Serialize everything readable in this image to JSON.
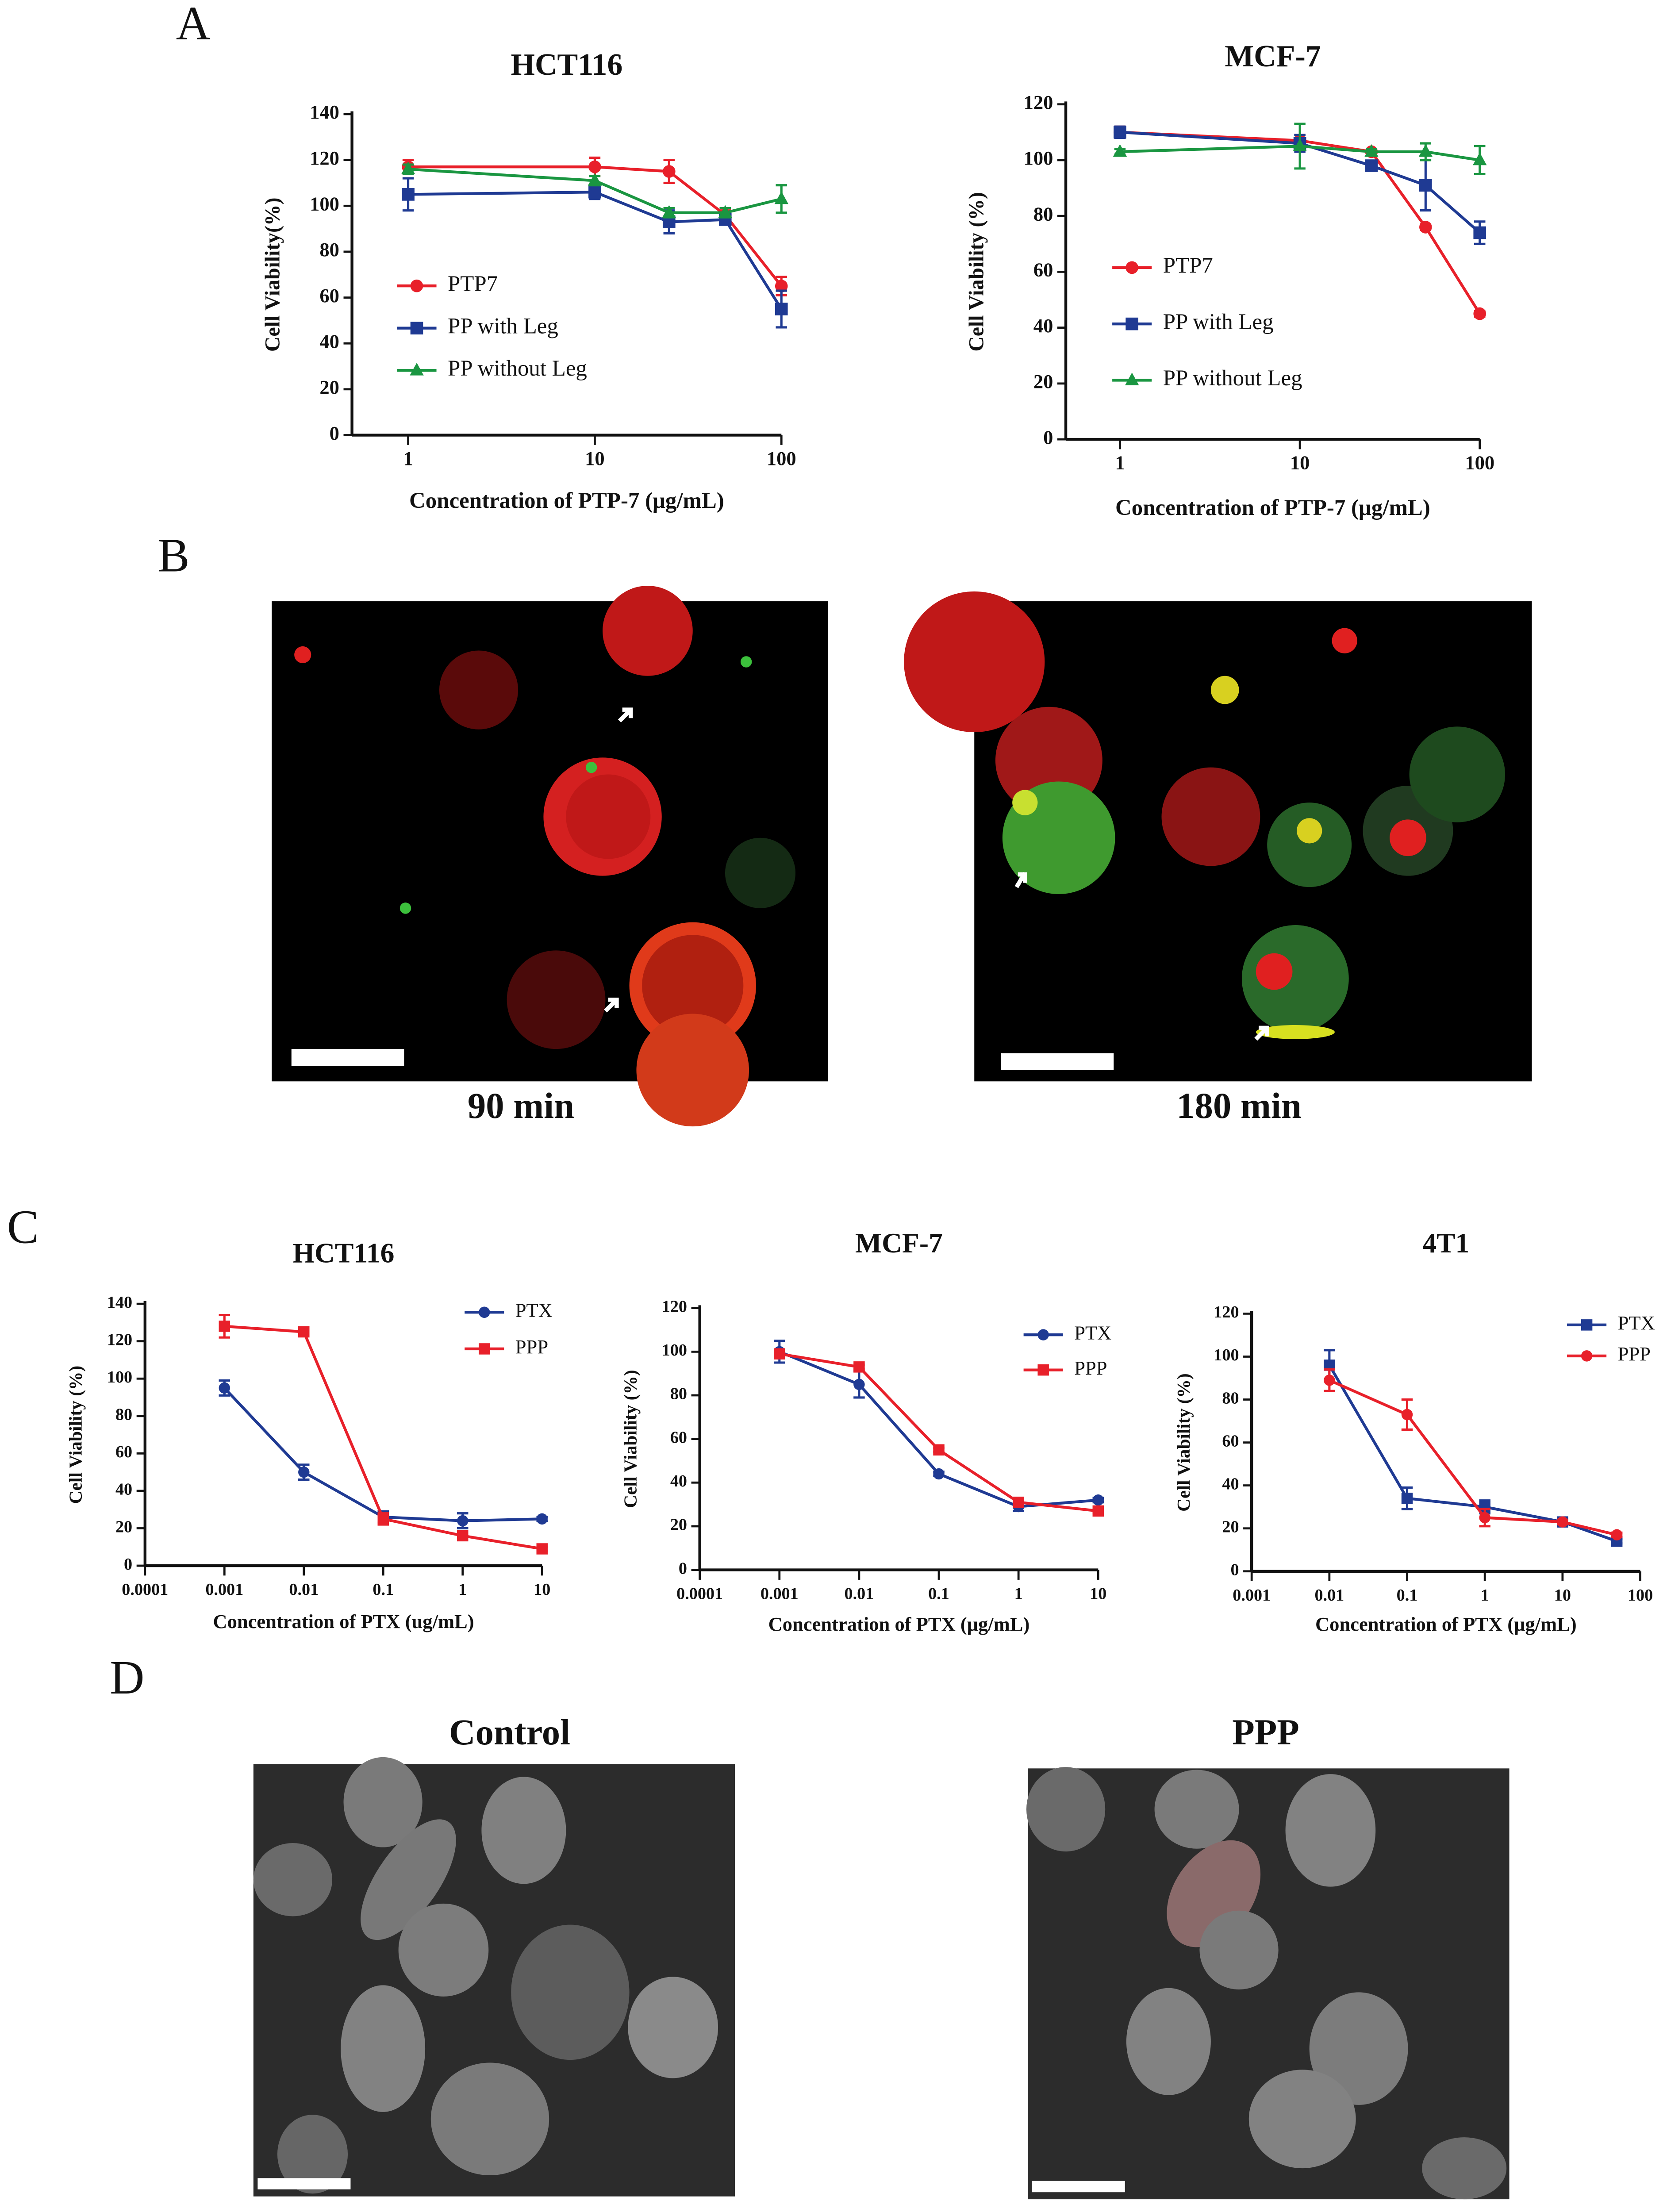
{
  "panel_labels": [
    "A",
    "B",
    "C",
    "D"
  ],
  "images": [
    {
      "caption": "90 min"
    },
    {
      "caption": "180 min"
    },
    {
      "caption": "Control"
    },
    {
      "caption": "PPP"
    }
  ],
  "chart_data": [
    {
      "type": "line",
      "title": "HCT116",
      "x_label": "Concentration of PTP-7 (μg/mL)",
      "y_label": "Cell Viability(%)",
      "log_x": true,
      "x": [
        1,
        10,
        25,
        50,
        100
      ],
      "xlim": [
        0.5,
        100
      ],
      "xticks": [
        1,
        10,
        100
      ],
      "ylim": [
        0,
        140
      ],
      "yticks": [
        0,
        20,
        40,
        60,
        80,
        100,
        120,
        140
      ],
      "legend": "left",
      "series": [
        {
          "name": "PTP7",
          "color": "#e8202a",
          "marker": "circle",
          "values": [
            117,
            117,
            115,
            96,
            65
          ],
          "errors": [
            3,
            4,
            5,
            2,
            4
          ]
        },
        {
          "name": "PP with Leg",
          "color": "#1f3a93",
          "marker": "square",
          "values": [
            105,
            106,
            93,
            94,
            55
          ],
          "errors": [
            7,
            3,
            5,
            2,
            8
          ]
        },
        {
          "name": "PP without Leg",
          "color": "#1a9641",
          "marker": "triangle",
          "values": [
            116,
            111,
            97,
            97,
            103
          ],
          "errors": [
            2,
            2,
            2,
            2,
            6
          ]
        }
      ]
    },
    {
      "type": "line",
      "title": "MCF-7",
      "x_label": "Concentration of PTP-7 (μg/mL)",
      "y_label": "Cell Viability (%)",
      "log_x": true,
      "x": [
        1,
        10,
        25,
        50,
        100
      ],
      "xlim": [
        0.5,
        100
      ],
      "xticks": [
        1,
        10,
        100
      ],
      "ylim": [
        0,
        120
      ],
      "yticks": [
        0,
        20,
        40,
        60,
        80,
        100,
        120
      ],
      "legend": "left",
      "series": [
        {
          "name": "PTP7",
          "color": "#e8202a",
          "marker": "circle",
          "values": [
            110,
            107,
            103,
            76,
            45
          ],
          "errors": [
            2,
            2,
            1,
            1,
            1
          ]
        },
        {
          "name": "PP with Leg",
          "color": "#1f3a93",
          "marker": "square",
          "values": [
            110,
            106,
            98,
            91,
            74
          ],
          "errors": [
            2,
            3,
            1,
            9,
            4
          ]
        },
        {
          "name": "PP without Leg",
          "color": "#1a9641",
          "marker": "triangle",
          "values": [
            103,
            105,
            103,
            103,
            100
          ],
          "errors": [
            1,
            8,
            1,
            3,
            5
          ]
        }
      ]
    },
    {
      "type": "line",
      "title": "HCT116",
      "x_label": "Concentration of PTX (ug/mL)",
      "y_label": "Cell Viability (%)",
      "log_x": true,
      "x": [
        0.001,
        0.01,
        0.1,
        1,
        10
      ],
      "xlim": [
        0.0001,
        10
      ],
      "xticks": [
        0.0001,
        0.001,
        0.01,
        0.1,
        1,
        10
      ],
      "ylim": [
        0,
        140
      ],
      "yticks": [
        0,
        20,
        40,
        60,
        80,
        100,
        120,
        140
      ],
      "legend": "upper right",
      "series": [
        {
          "name": "PTX",
          "color": "#1f3a93",
          "marker": "circle",
          "values": [
            95,
            50,
            26,
            24,
            25
          ],
          "errors": [
            4,
            4,
            3,
            4,
            1
          ]
        },
        {
          "name": "PPP",
          "color": "#e8202a",
          "marker": "square",
          "values": [
            128,
            125,
            25,
            16,
            9
          ],
          "errors": [
            6,
            1,
            3,
            1,
            1
          ]
        }
      ]
    },
    {
      "type": "line",
      "title": "MCF-7",
      "x_label": "Concentration of PTX (μg/mL)",
      "y_label": "Cell Viability (%)",
      "log_x": true,
      "x": [
        0.001,
        0.01,
        0.1,
        1,
        10
      ],
      "xlim": [
        0.0001,
        10
      ],
      "xticks": [
        0.0001,
        0.001,
        0.01,
        0.1,
        1,
        10
      ],
      "ylim": [
        0,
        120
      ],
      "yticks": [
        0,
        20,
        40,
        60,
        80,
        100,
        120
      ],
      "legend": "upper right",
      "series": [
        {
          "name": "PTX",
          "color": "#1f3a93",
          "marker": "circle",
          "values": [
            100,
            85,
            44,
            29,
            32
          ],
          "errors": [
            5,
            6,
            1,
            2,
            1
          ]
        },
        {
          "name": "PPP",
          "color": "#e8202a",
          "marker": "square",
          "values": [
            99,
            93,
            55,
            31,
            27
          ],
          "errors": [
            2,
            1,
            1,
            1,
            1
          ]
        }
      ]
    },
    {
      "type": "line",
      "title": "4T1",
      "x_label": "Concentration of PTX (μg/mL)",
      "y_label": "Cell Viability (%)",
      "log_x": true,
      "x": [
        0.01,
        0.1,
        1,
        10,
        50
      ],
      "xlim": [
        0.001,
        100
      ],
      "xticks": [
        0.001,
        0.01,
        0.1,
        1,
        10,
        100
      ],
      "ylim": [
        0,
        120
      ],
      "yticks": [
        0,
        20,
        40,
        60,
        80,
        100,
        120
      ],
      "legend": "upper right",
      "series": [
        {
          "name": "PTX",
          "color": "#1f3a93",
          "marker": "square",
          "values": [
            96,
            34,
            30,
            23,
            14
          ],
          "errors": [
            7,
            5,
            3,
            1,
            1
          ]
        },
        {
          "name": "PPP",
          "color": "#e8202a",
          "marker": "circle",
          "values": [
            89,
            73,
            25,
            23,
            17
          ],
          "errors": [
            5,
            7,
            4,
            1,
            1
          ]
        }
      ]
    }
  ]
}
